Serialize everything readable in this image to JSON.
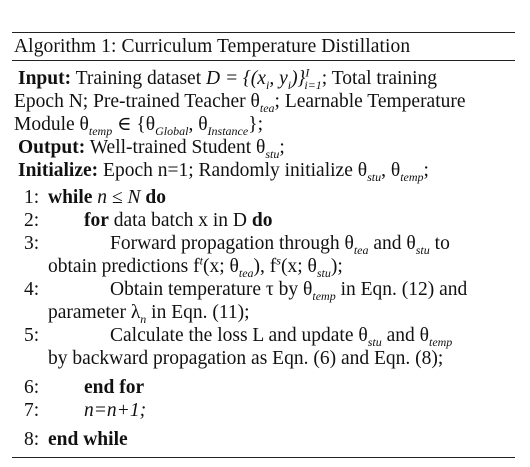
{
  "title": "Algorithm 1: Curriculum Temperature Distillation",
  "input": {
    "label": "Input:",
    "line1": "Training dataset ",
    "dataset_math": "D = {(x",
    "dataset_math2": "i",
    "dataset_math3": ", y",
    "dataset_math4": "i",
    "dataset_math5": ")}",
    "dataset_sub": "i=1",
    "dataset_sup": "I",
    "line1_end": "; Total training",
    "line2": "Epoch N; Pre-trained Teacher θ",
    "tea_sub": "tea",
    "line2b": "; Learnable Temperature",
    "line3": "Module θ",
    "temp_sub": "temp",
    "line3b": " ∈ {θ",
    "global_sub": "Global",
    "line3c": ", θ",
    "instance_sub": "Instance",
    "line3d": "};"
  },
  "output": {
    "label": "Output:",
    "text": " Well-trained Student θ",
    "stu_sub": "stu",
    "end": ";"
  },
  "initialize": {
    "label": "Initialize:",
    "text": " Epoch n=1; Randomly initialize θ",
    "stu_sub": "stu",
    "mid": ", θ",
    "temp_sub": "temp",
    "end": ";"
  },
  "steps": [
    {
      "num": "1:",
      "kw": "while",
      "text": " n ≤ N ",
      "kw2": "do"
    },
    {
      "num": "2:",
      "kw": "for",
      "text": " data batch x in D ",
      "kw2": "do"
    },
    {
      "num": "3:",
      "a": "Forward propagation through θ",
      "a_sub": "tea",
      "b": " and θ",
      "b_sub": "stu",
      "c": " to",
      "cont1": "obtain predictions f",
      "cont_sup": "t",
      "cont2": "(x; θ",
      "cont_sub": "tea",
      "cont3": "), f",
      "cont_sup2": "s",
      "cont4": "(x; θ",
      "cont_sub2": "stu",
      "cont5": ");"
    },
    {
      "num": "4:",
      "a": "Obtain temperature τ by θ",
      "a_sub": "temp",
      "b": " in Eqn. (12) and",
      "cont1": "parameter λ",
      "cont_sub": "n",
      "cont2": " in Eqn. (11);"
    },
    {
      "num": "5:",
      "a": "Calculate the loss L and update θ",
      "a_sub": "stu",
      "b": " and θ",
      "b_sub": "temp",
      "cont1": "by backward propagation as Eqn. (6) and Eqn. (8);"
    },
    {
      "num": "6:",
      "kw": "end for"
    },
    {
      "num": "7:",
      "text": "n=n+1;"
    },
    {
      "num": "8:",
      "kw": "end while"
    }
  ]
}
